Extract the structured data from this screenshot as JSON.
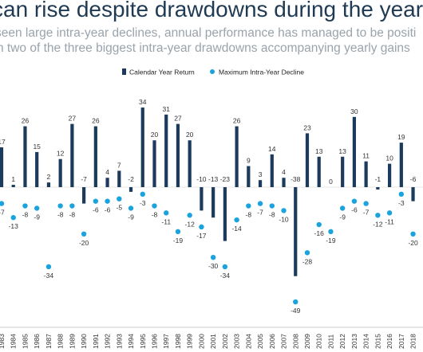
{
  "header": {
    "title": "can rise despite drawdowns during the year",
    "subtitle_line1": "seen large intra-year declines, annual performance has managed to be positi",
    "subtitle_line2": "h two of the three biggest intra-year drawdowns accompanying yearly gains"
  },
  "chart_data": {
    "type": "bar",
    "categories": [
      "1983",
      "1984",
      "1985",
      "1986",
      "1987",
      "1988",
      "1989",
      "1990",
      "1991",
      "1992",
      "1993",
      "1994",
      "1995",
      "1996",
      "1997",
      "1998",
      "1999",
      "2000",
      "2001",
      "2002",
      "2003",
      "2004",
      "2005",
      "2006",
      "2007",
      "2008",
      "2009",
      "2010",
      "2011",
      "2012",
      "2013",
      "2014",
      "2015",
      "2016",
      "2017",
      "2018"
    ],
    "series": [
      {
        "name": "Calendar Year Return",
        "type": "bar",
        "color": "#1b3a5c",
        "values": [
          17,
          1,
          26,
          15,
          2,
          12,
          27,
          -7,
          26,
          4,
          7,
          -2,
          34,
          20,
          31,
          27,
          20,
          -10,
          -13,
          -23,
          26,
          9,
          3,
          14,
          4,
          -38,
          23,
          13,
          0,
          13,
          30,
          11,
          -1,
          10,
          19,
          -6
        ]
      },
      {
        "name": "Maximum Intra-Year Decline",
        "type": "scatter",
        "color": "#1aa3dc",
        "values": [
          -7,
          -13,
          -8,
          -9,
          -34,
          -8,
          -8,
          -20,
          -6,
          -6,
          -5,
          -9,
          -3,
          -8,
          -11,
          -19,
          -12,
          -17,
          -30,
          -34,
          -14,
          -8,
          -7,
          -8,
          -10,
          -49,
          -28,
          -16,
          -19,
          -9,
          -6,
          -7,
          -12,
          -11,
          -3,
          -20
        ]
      }
    ],
    "ylim": [
      -55,
      45
    ],
    "grid": false,
    "legend": "top-center"
  }
}
